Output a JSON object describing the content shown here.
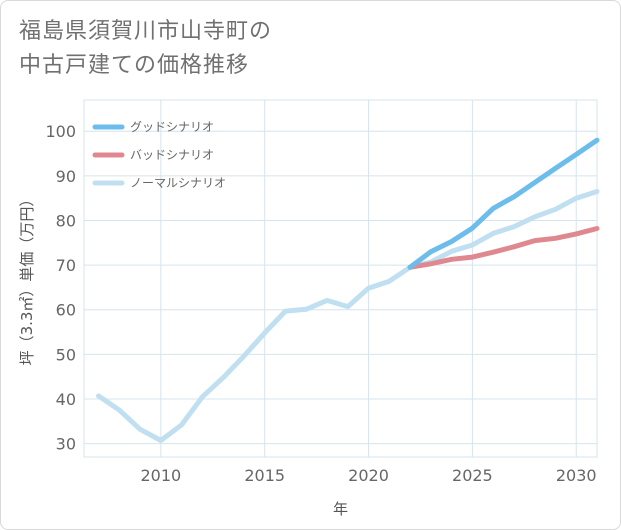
{
  "title_lines": [
    "福島県須賀川市山寺町の",
    "中古戸建ての価格推移"
  ],
  "colors": {
    "good": "#6cbcec",
    "bad": "#e08890",
    "normal": "#c0dff0"
  },
  "chart_data": {
    "type": "line",
    "xlabel": "年",
    "ylabel": "坪（3.3㎡）単価（万円）",
    "xlim": [
      2006.3,
      2031
    ],
    "ylim": [
      27,
      107
    ],
    "xticks": [
      2010,
      2015,
      2020,
      2025,
      2030
    ],
    "yticks": [
      30,
      40,
      50,
      60,
      70,
      80,
      90,
      100
    ],
    "grid": true,
    "legend_position": "top-left",
    "series": [
      {
        "name": "グッドシナリオ",
        "color_key": "good",
        "x": [
          2022,
          2023,
          2024,
          2025,
          2026,
          2027,
          2028,
          2029,
          2030,
          2031
        ],
        "y": [
          69.5,
          73,
          75.3,
          78.3,
          82.7,
          85.3,
          88.5,
          91.7,
          94.8,
          98
        ]
      },
      {
        "name": "バッドシナリオ",
        "color_key": "bad",
        "x": [
          2022,
          2023,
          2024,
          2025,
          2026,
          2027,
          2028,
          2029,
          2030,
          2031
        ],
        "y": [
          69.5,
          70.3,
          71.3,
          71.8,
          72.9,
          74.1,
          75.5,
          76,
          77,
          78.2
        ]
      },
      {
        "name": "ノーマルシナリオ",
        "color_key": "normal",
        "x": [
          2007,
          2008,
          2009,
          2010,
          2011,
          2012,
          2013,
          2014,
          2015,
          2016,
          2017,
          2018,
          2019,
          2020,
          2021,
          2022,
          2023,
          2024,
          2025,
          2026,
          2027,
          2028,
          2029,
          2030,
          2031
        ],
        "y": [
          40.7,
          37.5,
          33.2,
          30.7,
          34.2,
          40.5,
          44.8,
          49.6,
          54.8,
          59.7,
          60.1,
          62.1,
          60.7,
          64.8,
          66.4,
          69.5,
          70.7,
          73.1,
          74.5,
          77.1,
          78.6,
          80.8,
          82.5,
          85,
          86.5
        ]
      }
    ]
  }
}
